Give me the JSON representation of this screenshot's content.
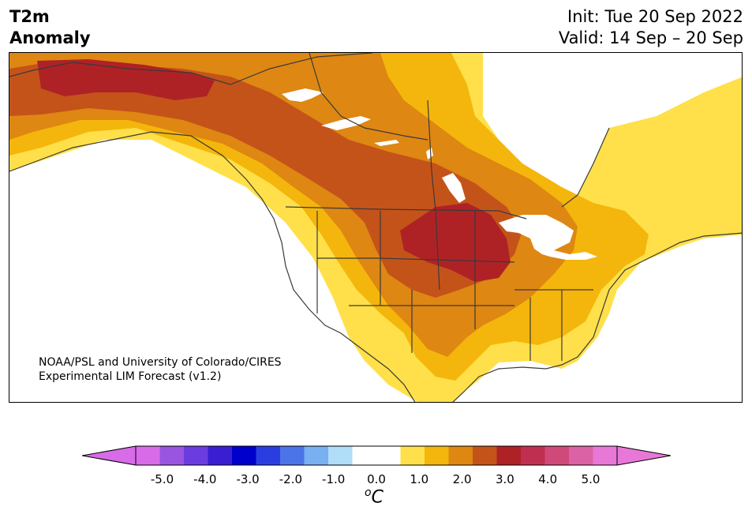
{
  "title": {
    "line1": "T2m",
    "line2": "Anomaly"
  },
  "forecast": {
    "init": "Init: Tue 20 Sep 2022",
    "valid": "Valid: 14 Sep – 20 Sep"
  },
  "credit": {
    "line1": "NOAA/PSL and University of Colorado/CIRES",
    "line2": "Experimental LIM Forecast (v1.2)"
  },
  "colorbar": {
    "unit_prefix": "o",
    "unit": "C",
    "ticks": [
      "-5.0",
      "-4.0",
      "-3.0",
      "-2.0",
      "-1.0",
      "0.0",
      "1.0",
      "2.0",
      "3.0",
      "4.0",
      "5.0"
    ],
    "colors": [
      "#d86be8",
      "#9a55e0",
      "#6b3de0",
      "#3a1fd2",
      "#0000cc",
      "#2a3ee0",
      "#4b74e8",
      "#78b0f2",
      "#b0ddf8",
      "#ffffff",
      "#ffffff",
      "#ffe04a",
      "#f4b60c",
      "#de8712",
      "#c4531a",
      "#ae2226",
      "#bf3050",
      "#cf4a78",
      "#dc62a6",
      "#e878d8"
    ],
    "under_color": "#d86be8",
    "over_color": "#e878d8"
  },
  "map": {
    "palette": {
      "land_blank": "#ffffff",
      "c05": "#ffe04a",
      "c10": "#f4b60c",
      "c15": "#de8712",
      "c20": "#c4531a",
      "c25": "#ae2226",
      "line": "#3a3a3a"
    }
  }
}
